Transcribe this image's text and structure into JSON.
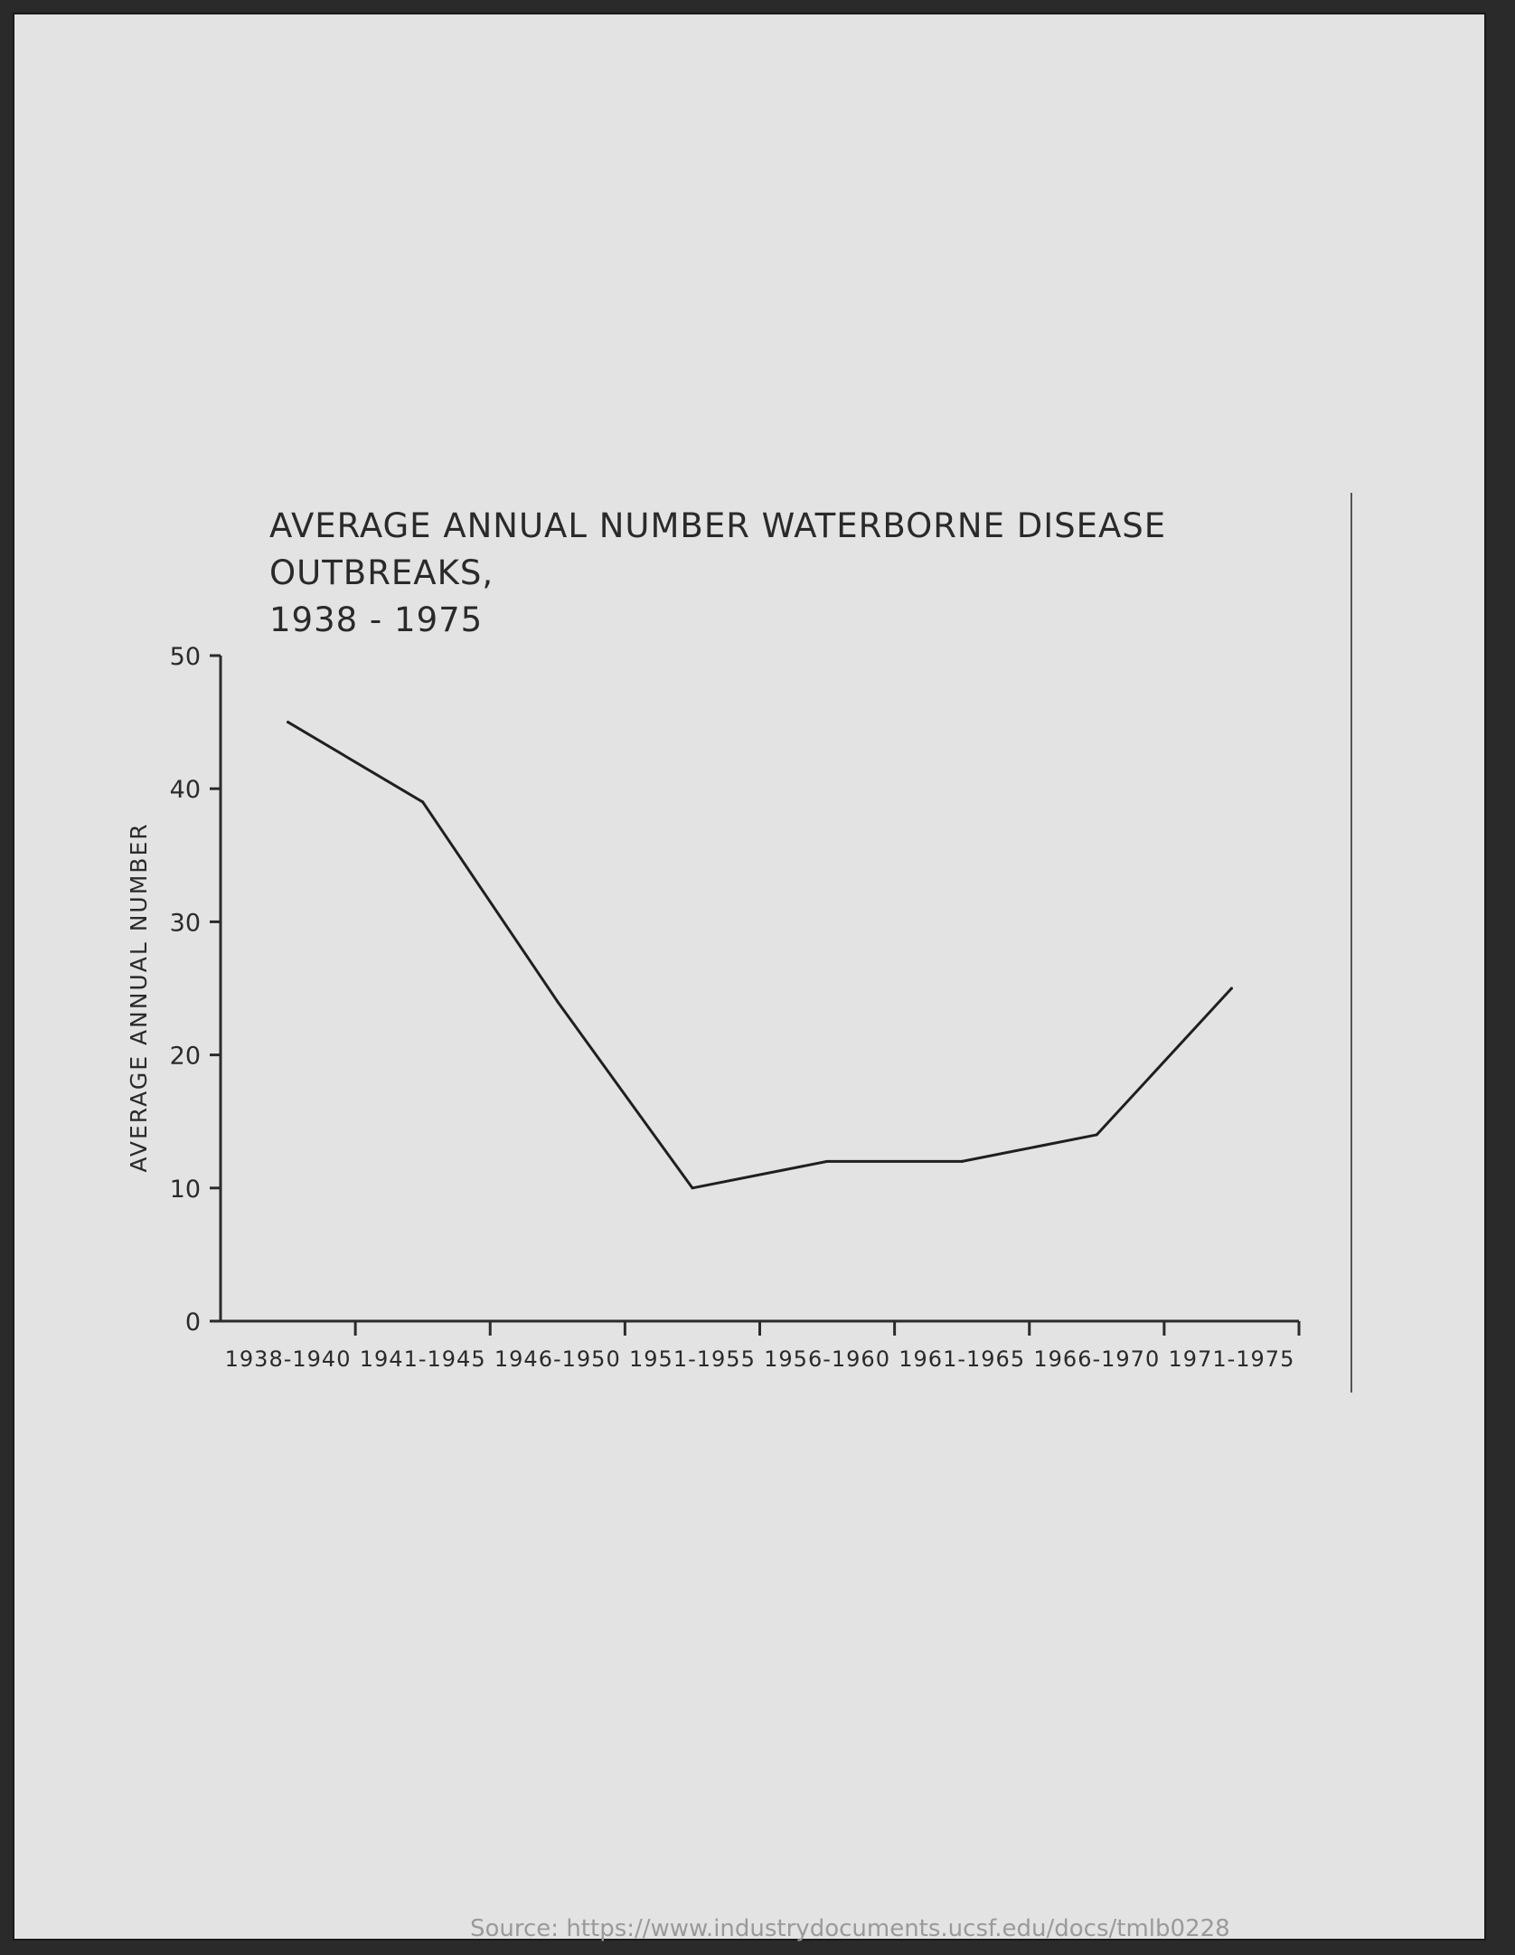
{
  "chart_data": {
    "type": "line",
    "title": "AVERAGE ANNUAL NUMBER WATERBORNE DISEASE OUTBREAKS,",
    "subtitle": "1938 - 1975",
    "xlabel": "",
    "ylabel": "AVERAGE ANNUAL NUMBER",
    "categories": [
      "1938-1940",
      "1941-1945",
      "1946-1950",
      "1951-1955",
      "1956-1960",
      "1961-1965",
      "1966-1970",
      "1971-1975"
    ],
    "y_ticks": [
      0,
      10,
      20,
      30,
      40,
      50
    ],
    "ylim": [
      0,
      50
    ],
    "grid": false,
    "series": [
      {
        "values": [
          45,
          39,
          24,
          10,
          12,
          12,
          14,
          25
        ]
      }
    ],
    "line_color": "#1f1f1f"
  },
  "source_text": "Source: https://www.industrydocuments.ucsf.edu/docs/tmlb0228"
}
